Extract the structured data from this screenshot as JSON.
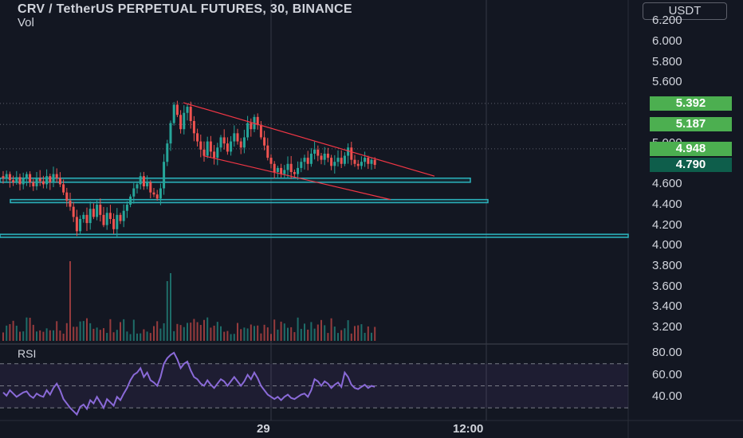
{
  "header": {
    "title": "CRV / TetherUS PERPETUAL FUTURES, 30, BINANCE",
    "volume_label": "Vol",
    "currency": "USDT"
  },
  "rsi": {
    "label": "RSI"
  },
  "colors": {
    "background": "#131722",
    "up": "#26a69a",
    "down": "#ef5350",
    "badge_green": "#4caf50",
    "badge_dark": "#0e5e4b",
    "level_box": "#2bb3bd",
    "trendline": "#f23645",
    "rsi_line": "#8a6ad8",
    "rsi_band": "#7e57c2"
  },
  "chart_data": {
    "type": "candlestick",
    "price_axis": {
      "ticks": [
        "6.200",
        "6.000",
        "5.800",
        "5.600",
        "5.400",
        "5.200",
        "5.000",
        "4.800",
        "4.600",
        "4.400",
        "4.200",
        "4.000",
        "3.800",
        "3.600",
        "3.400",
        "3.200"
      ],
      "range": [
        3.05,
        6.25
      ]
    },
    "rsi_axis": {
      "ticks": [
        "80.00",
        "60.00",
        "40.00"
      ],
      "band": [
        30,
        70
      ],
      "mid": 50
    },
    "time_axis": {
      "ticks": [
        "29",
        "12:00"
      ]
    },
    "price_badges": [
      {
        "value": "5.392",
        "style": "green"
      },
      {
        "value": "5.187",
        "style": "green"
      },
      {
        "value": "4.948",
        "style": "green"
      },
      {
        "value": "4.790",
        "style": "dark"
      }
    ],
    "horizontal_levels": [
      5.392,
      5.187,
      4.948
    ],
    "support_zones": [
      {
        "from": 4.62,
        "to": 4.66,
        "x_start": 0,
        "x_end": 590
      },
      {
        "from": 4.42,
        "to": 4.45,
        "x_start": 13,
        "x_end": 612
      },
      {
        "from": 4.08,
        "to": 4.11,
        "x_start": 0,
        "x_end": 788
      }
    ],
    "trendlines": [
      {
        "from": [
          230,
          5.4
        ],
        "to": [
          545,
          4.68
        ]
      },
      {
        "from": [
          255,
          4.88
        ],
        "to": [
          490,
          4.45
        ]
      }
    ],
    "closes": [
      4.66,
      4.7,
      4.64,
      4.62,
      4.67,
      4.6,
      4.66,
      4.7,
      4.62,
      4.58,
      4.66,
      4.63,
      4.6,
      4.68,
      4.62,
      4.7,
      4.66,
      4.6,
      4.52,
      4.44,
      4.38,
      4.28,
      4.14,
      4.26,
      4.3,
      4.22,
      4.36,
      4.28,
      4.4,
      4.3,
      4.2,
      4.32,
      4.26,
      4.16,
      4.3,
      4.24,
      4.34,
      4.4,
      4.48,
      4.56,
      4.6,
      4.68,
      4.58,
      4.62,
      4.52,
      4.5,
      4.46,
      4.56,
      4.82,
      5.0,
      5.2,
      5.38,
      5.28,
      5.14,
      5.3,
      5.36,
      5.22,
      5.1,
      5.02,
      4.94,
      4.88,
      5.02,
      4.92,
      4.86,
      4.96,
      5.06,
      5.0,
      4.92,
      5.02,
      5.1,
      5.02,
      4.96,
      5.06,
      5.2,
      5.14,
      5.26,
      5.18,
      5.06,
      4.98,
      4.86,
      4.8,
      4.72,
      4.76,
      4.7,
      4.74,
      4.8,
      4.72,
      4.7,
      4.76,
      4.82,
      4.86,
      4.8,
      4.9,
      4.94,
      4.88,
      4.84,
      4.9,
      4.86,
      4.78,
      4.82,
      4.86,
      4.8,
      4.88,
      4.96,
      4.84,
      4.8,
      4.78,
      4.82,
      4.86,
      4.8,
      4.84,
      4.79
    ],
    "rsi": [
      44,
      41,
      46,
      43,
      40,
      42,
      44,
      45,
      41,
      39,
      43,
      41,
      40,
      46,
      42,
      48,
      52,
      46,
      38,
      34,
      30,
      27,
      24,
      31,
      33,
      29,
      37,
      34,
      40,
      35,
      30,
      38,
      35,
      32,
      40,
      37,
      43,
      48,
      55,
      60,
      62,
      66,
      58,
      62,
      55,
      53,
      50,
      58,
      70,
      75,
      78,
      80,
      74,
      66,
      70,
      72,
      64,
      58,
      56,
      52,
      50,
      55,
      51,
      48,
      52,
      56,
      54,
      50,
      54,
      58,
      54,
      50,
      54,
      60,
      56,
      62,
      57,
      50,
      46,
      42,
      40,
      38,
      40,
      37,
      40,
      42,
      39,
      38,
      40,
      42,
      43,
      40,
      46,
      56,
      54,
      50,
      54,
      52,
      48,
      51,
      53,
      49,
      62,
      58,
      51,
      48,
      47,
      49,
      51,
      48,
      50,
      49
    ],
    "volume_highlights": [
      {
        "index": 20,
        "value": 100
      },
      {
        "index": 49,
        "value": 75
      },
      {
        "index": 50,
        "value": 85
      }
    ]
  }
}
